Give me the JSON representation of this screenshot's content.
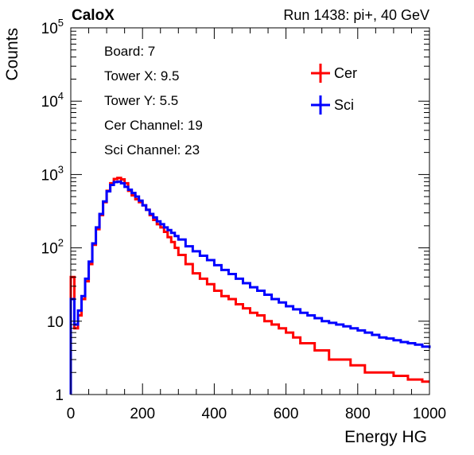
{
  "header": {
    "left_label": "CaloX",
    "right_label": "Run 1438: pi+, 40 GeV"
  },
  "info_box": {
    "lines": [
      "Board: 7",
      "Tower X: 9.5",
      "Tower Y: 5.5",
      "Cer Channel: 19",
      "Sci Channel: 23"
    ]
  },
  "chart_data": {
    "type": "line",
    "title": "",
    "xlabel": "Energy HG",
    "ylabel": "Counts",
    "xlim": [
      0,
      1000
    ],
    "ylim": [
      1,
      100000
    ],
    "y_scale": "log",
    "x_ticks": [
      "0",
      "200",
      "400",
      "600",
      "800",
      "1000"
    ],
    "y_ticks": [
      {
        "value": 1,
        "base": "1",
        "exp": ""
      },
      {
        "value": 10,
        "base": "10",
        "exp": ""
      },
      {
        "value": 100,
        "base": "10",
        "exp": "2"
      },
      {
        "value": 1000,
        "base": "10",
        "exp": "3"
      },
      {
        "value": 10000,
        "base": "10",
        "exp": "4"
      },
      {
        "value": 100000,
        "base": "10",
        "exp": "5"
      }
    ],
    "grid": false,
    "legend_position": "top-right",
    "series": [
      {
        "name": "Cer",
        "color": "#ff0000",
        "x": [
          0,
          10,
          20,
          30,
          40,
          50,
          60,
          70,
          80,
          90,
          100,
          110,
          120,
          130,
          140,
          150,
          160,
          170,
          180,
          190,
          200,
          210,
          220,
          230,
          240,
          250,
          260,
          270,
          280,
          290,
          300,
          320,
          340,
          360,
          380,
          400,
          420,
          440,
          460,
          480,
          500,
          520,
          540,
          560,
          580,
          600,
          620,
          640,
          660,
          680,
          700,
          720,
          740,
          760,
          780,
          800,
          820,
          840,
          860,
          880,
          900,
          920,
          940,
          960,
          980,
          1000
        ],
        "y": [
          40,
          8,
          12,
          20,
          35,
          60,
          110,
          180,
          280,
          420,
          600,
          760,
          870,
          900,
          860,
          760,
          600,
          520,
          460,
          420,
          380,
          330,
          280,
          240,
          210,
          190,
          165,
          140,
          120,
          100,
          80,
          60,
          45,
          38,
          32,
          26,
          22,
          20,
          17,
          15,
          13,
          12,
          10,
          9,
          8,
          7,
          6,
          5,
          5,
          4,
          4,
          3,
          3,
          3,
          2.5,
          2.5,
          2,
          2,
          2,
          2,
          1.8,
          1.8,
          1.6,
          1.6,
          1.5,
          1.5
        ]
      },
      {
        "name": "Sci",
        "color": "#0000ff",
        "x": [
          0,
          10,
          20,
          30,
          40,
          50,
          60,
          70,
          80,
          90,
          100,
          110,
          120,
          130,
          140,
          150,
          160,
          170,
          180,
          190,
          200,
          210,
          220,
          230,
          240,
          250,
          260,
          270,
          280,
          290,
          300,
          320,
          340,
          360,
          380,
          400,
          420,
          440,
          460,
          480,
          500,
          520,
          540,
          560,
          580,
          600,
          620,
          640,
          660,
          680,
          700,
          720,
          740,
          760,
          780,
          800,
          820,
          840,
          860,
          880,
          900,
          920,
          940,
          960,
          980,
          1000
        ],
        "y": [
          20,
          9,
          14,
          22,
          38,
          65,
          115,
          190,
          290,
          430,
          590,
          720,
          790,
          800,
          760,
          680,
          620,
          560,
          500,
          440,
          380,
          330,
          290,
          260,
          230,
          210,
          190,
          175,
          160,
          145,
          130,
          105,
          90,
          78,
          68,
          58,
          50,
          44,
          38,
          33,
          29,
          26,
          23,
          20,
          18,
          16,
          14.5,
          13,
          12,
          11,
          10,
          9.5,
          9,
          8.5,
          8,
          7.5,
          7,
          6.5,
          6,
          5.8,
          5.5,
          5.2,
          5,
          4.8,
          4.5,
          4.3
        ]
      }
    ]
  }
}
